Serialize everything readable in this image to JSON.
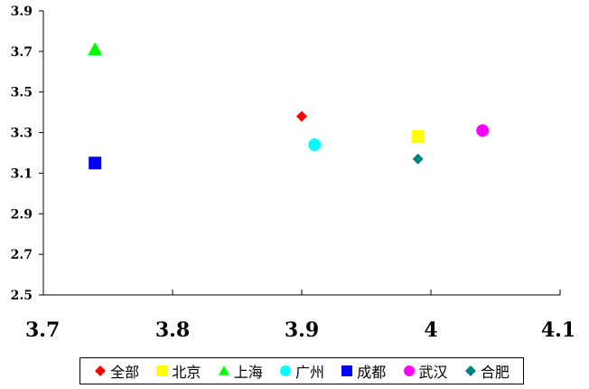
{
  "chart_data": {
    "type": "scatter",
    "title": "",
    "xlabel": "",
    "ylabel": "",
    "xlim": [
      3.7,
      4.1
    ],
    "ylim": [
      2.5,
      3.9
    ],
    "xticks": [
      "3.7",
      "3.8",
      "3.9",
      "4",
      "4.1"
    ],
    "yticks": [
      "2.5",
      "2.7",
      "2.9",
      "3.1",
      "3.3",
      "3.5",
      "3.7",
      "3.9"
    ],
    "grid": false,
    "legend_position": "bottom",
    "series": [
      {
        "name": "全部",
        "marker": "diamond",
        "color": "#ff0000",
        "x": [
          3.9
        ],
        "y": [
          3.38
        ]
      },
      {
        "name": "北京",
        "marker": "square",
        "color": "#ffff00",
        "x": [
          3.99
        ],
        "y": [
          3.28
        ]
      },
      {
        "name": "上海",
        "marker": "triangle",
        "color": "#00ff00",
        "x": [
          3.74
        ],
        "y": [
          3.71
        ]
      },
      {
        "name": "广州",
        "marker": "circle",
        "color": "#00ffff",
        "x": [
          3.91
        ],
        "y": [
          3.24
        ]
      },
      {
        "name": "成都",
        "marker": "square",
        "color": "#0000ff",
        "x": [
          3.74
        ],
        "y": [
          3.15
        ]
      },
      {
        "name": "武汉",
        "marker": "circle",
        "color": "#ff00ff",
        "x": [
          4.04
        ],
        "y": [
          3.31
        ]
      },
      {
        "name": "合肥",
        "marker": "diamond",
        "color": "#008080",
        "x": [
          3.99
        ],
        "y": [
          3.17
        ]
      }
    ]
  }
}
